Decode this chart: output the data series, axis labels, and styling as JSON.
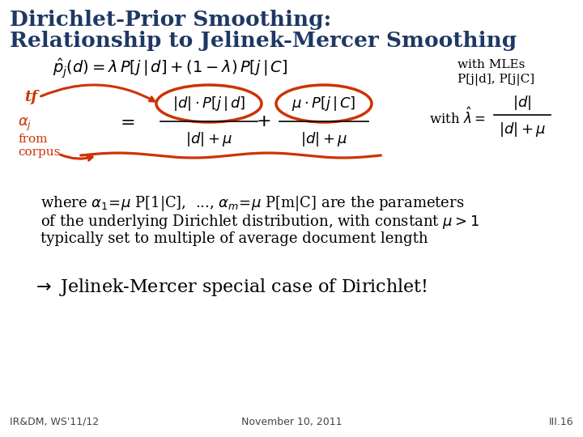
{
  "title_line1": "Dirichlet-Prior Smoothing:",
  "title_line2": "Relationship to Jelinek-Mercer Smoothing",
  "title_color": "#1F3864",
  "title_fontsize": 19,
  "bg_color": "#FFFFFF",
  "with_mles_line1": "with MLEs",
  "with_mles_line2": "P[j|d], P[j|C]",
  "footer_left": "IR&DM, WS'11/12",
  "footer_center": "November 10, 2011",
  "footer_right": "III.16",
  "body_color": "#000000",
  "orange_color": "#CC3300",
  "formula_fontsize": 13,
  "body_fontsize": 13,
  "footer_fontsize": 9
}
